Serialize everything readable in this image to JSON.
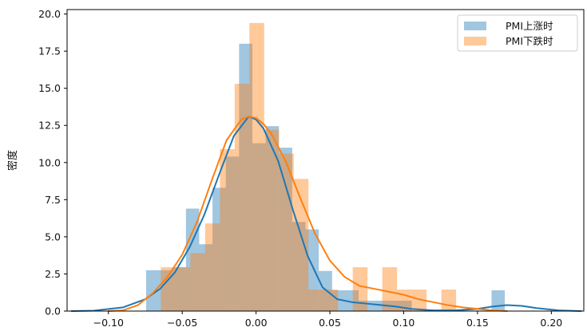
{
  "chart_data": {
    "type": "histogram",
    "xlabel": "",
    "ylabel": "密度",
    "xlim": [
      -0.128,
      0.222
    ],
    "ylim": [
      0,
      20.3
    ],
    "xticks": [
      {
        "value": -0.1,
        "label": "−0.10"
      },
      {
        "value": -0.05,
        "label": "−0.05"
      },
      {
        "value": 0.0,
        "label": "0.00"
      },
      {
        "value": 0.05,
        "label": "0.05"
      },
      {
        "value": 0.1,
        "label": "0.10"
      },
      {
        "value": 0.15,
        "label": "0.15"
      },
      {
        "value": 0.2,
        "label": "0.20"
      }
    ],
    "yticks": [
      {
        "value": 0.0,
        "label": "0.0"
      },
      {
        "value": 2.5,
        "label": "2.5"
      },
      {
        "value": 5.0,
        "label": "5.0"
      },
      {
        "value": 7.5,
        "label": "7.5"
      },
      {
        "value": 10.0,
        "label": "10.0"
      },
      {
        "value": 12.5,
        "label": "12.5"
      },
      {
        "value": 15.0,
        "label": "15.0"
      },
      {
        "value": 17.5,
        "label": "17.5"
      },
      {
        "value": 20.0,
        "label": "20.0"
      }
    ],
    "legend_position": "top-right",
    "series": [
      {
        "name": "PMI上涨时",
        "color": "#1f77b4",
        "bins": [
          [
            -0.0745,
            -0.0655,
            2.75
          ],
          [
            -0.0655,
            -0.0565,
            2.75
          ],
          [
            -0.0565,
            -0.0475,
            2.95
          ],
          [
            -0.0475,
            -0.0385,
            6.9
          ],
          [
            -0.0385,
            -0.0295,
            4.5
          ],
          [
            -0.0295,
            -0.0205,
            8.3
          ],
          [
            -0.0205,
            -0.0115,
            10.4
          ],
          [
            -0.0115,
            -0.0025,
            18.0
          ],
          [
            -0.0025,
            0.0065,
            11.3
          ],
          [
            0.0065,
            0.0155,
            12.45
          ],
          [
            0.0155,
            0.0245,
            11.0
          ],
          [
            0.0245,
            0.0335,
            6.0
          ],
          [
            0.0335,
            0.0425,
            5.5
          ],
          [
            0.0425,
            0.0515,
            2.7
          ],
          [
            0.0515,
            0.0605,
            1.4
          ],
          [
            0.0605,
            0.0695,
            1.4
          ],
          [
            0.0695,
            0.0785,
            0.7
          ],
          [
            0.0785,
            0.0875,
            0.7
          ],
          [
            0.0875,
            0.0965,
            0.7
          ],
          [
            0.0965,
            0.1055,
            0.7
          ],
          [
            0.1055,
            0.1145,
            0.0
          ],
          [
            0.1145,
            0.1235,
            0.0
          ],
          [
            0.1235,
            0.1325,
            0.0
          ],
          [
            0.1325,
            0.1415,
            0.0
          ],
          [
            0.1415,
            0.1505,
            0.0
          ],
          [
            0.1505,
            0.1595,
            0.0
          ],
          [
            0.1595,
            0.1685,
            1.4
          ]
        ],
        "kde": [
          [
            -0.125,
            0.0
          ],
          [
            -0.11,
            0.03
          ],
          [
            -0.09,
            0.25
          ],
          [
            -0.075,
            0.8
          ],
          [
            -0.065,
            1.5
          ],
          [
            -0.055,
            2.6
          ],
          [
            -0.045,
            4.3
          ],
          [
            -0.035,
            6.5
          ],
          [
            -0.025,
            9.2
          ],
          [
            -0.015,
            11.8
          ],
          [
            -0.005,
            13.1
          ],
          [
            0.0,
            12.9
          ],
          [
            0.005,
            12.3
          ],
          [
            0.015,
            10.1
          ],
          [
            0.025,
            6.8
          ],
          [
            0.035,
            3.7
          ],
          [
            0.045,
            1.6
          ],
          [
            0.055,
            0.8
          ],
          [
            0.065,
            0.6
          ],
          [
            0.075,
            0.5
          ],
          [
            0.085,
            0.4
          ],
          [
            0.095,
            0.3
          ],
          [
            0.105,
            0.15
          ],
          [
            0.12,
            0.05
          ],
          [
            0.135,
            0.05
          ],
          [
            0.15,
            0.15
          ],
          [
            0.16,
            0.3
          ],
          [
            0.17,
            0.4
          ],
          [
            0.18,
            0.35
          ],
          [
            0.19,
            0.2
          ],
          [
            0.205,
            0.05
          ],
          [
            0.22,
            0.0
          ]
        ]
      },
      {
        "name": "PMI下跌时",
        "color": "#ff7f0e",
        "bins": [
          [
            -0.0645,
            -0.0545,
            2.95
          ],
          [
            -0.0545,
            -0.0445,
            2.95
          ],
          [
            -0.0445,
            -0.0345,
            3.9
          ],
          [
            -0.0345,
            -0.0245,
            5.9
          ],
          [
            -0.0245,
            -0.0145,
            10.9
          ],
          [
            -0.0145,
            -0.0045,
            15.3
          ],
          [
            -0.0045,
            0.0055,
            19.4
          ],
          [
            0.0055,
            0.0155,
            12.2
          ],
          [
            0.0155,
            0.0255,
            10.6
          ],
          [
            0.0255,
            0.0355,
            8.9
          ],
          [
            0.0355,
            0.0455,
            1.45
          ],
          [
            0.0455,
            0.0555,
            1.45
          ],
          [
            0.0555,
            0.0655,
            0.0
          ],
          [
            0.0655,
            0.0755,
            2.95
          ],
          [
            0.0755,
            0.0855,
            0.0
          ],
          [
            0.0855,
            0.0955,
            2.95
          ],
          [
            0.0955,
            0.1055,
            1.45
          ],
          [
            0.1055,
            0.1155,
            1.45
          ],
          [
            0.1155,
            0.1255,
            0.0
          ],
          [
            0.1255,
            0.1355,
            1.45
          ],
          [
            0.1355,
            0.1455,
            0.0
          ]
        ],
        "kde": [
          [
            -0.1,
            0.0
          ],
          [
            -0.09,
            0.05
          ],
          [
            -0.08,
            0.4
          ],
          [
            -0.07,
            1.2
          ],
          [
            -0.06,
            2.3
          ],
          [
            -0.05,
            3.8
          ],
          [
            -0.04,
            6.0
          ],
          [
            -0.03,
            8.8
          ],
          [
            -0.02,
            11.5
          ],
          [
            -0.01,
            12.9
          ],
          [
            -0.005,
            13.1
          ],
          [
            0.0,
            13.0
          ],
          [
            0.005,
            12.6
          ],
          [
            0.01,
            12.0
          ],
          [
            0.02,
            10.1
          ],
          [
            0.03,
            7.6
          ],
          [
            0.04,
            5.2
          ],
          [
            0.05,
            3.4
          ],
          [
            0.06,
            2.3
          ],
          [
            0.07,
            1.7
          ],
          [
            0.08,
            1.5
          ],
          [
            0.09,
            1.3
          ],
          [
            0.1,
            1.1
          ],
          [
            0.11,
            0.8
          ],
          [
            0.12,
            0.6
          ],
          [
            0.13,
            0.4
          ],
          [
            0.14,
            0.25
          ],
          [
            0.15,
            0.15
          ],
          [
            0.16,
            0.05
          ],
          [
            0.17,
            0.0
          ]
        ]
      }
    ]
  }
}
